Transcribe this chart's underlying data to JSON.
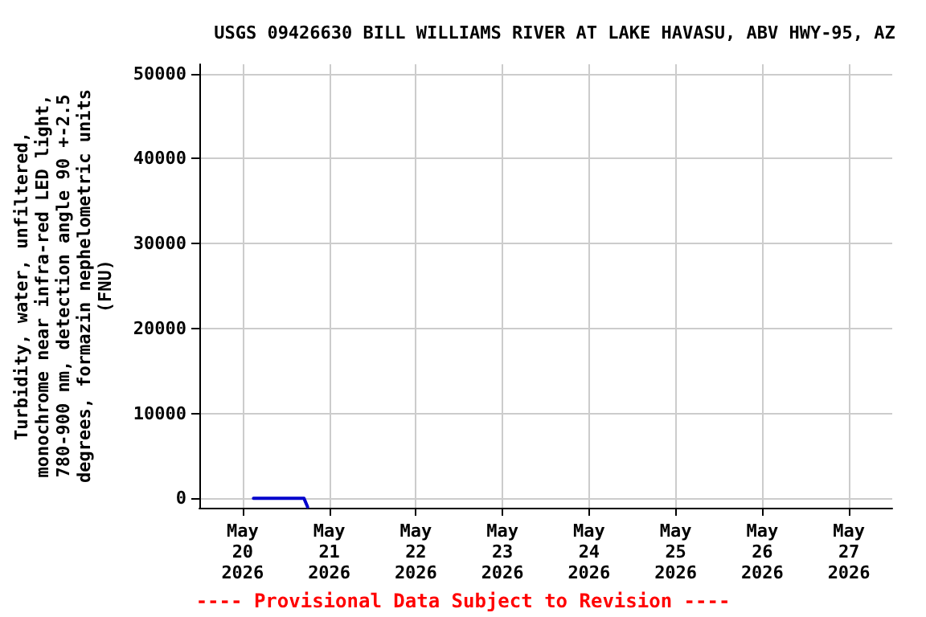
{
  "chart_data": {
    "type": "line",
    "title": "USGS 09426630 BILL WILLIAMS RIVER AT LAKE HAVASU, ABV HWY-95, AZ",
    "ylabel": "Turbidity, water, unfiltered,\nmonochrome near infra-red LED light,\n780-900 nm, detection angle 90 +-2.5\ndegrees, formazin nephelometric units\n(FNU)",
    "x": [
      "2026-05-20T03:00",
      "2026-05-20T10:00",
      "2026-05-20T17:00",
      "2026-05-20T18:00"
    ],
    "series": [
      {
        "color": "#0000cc",
        "values": [
          0,
          0,
          0,
          -1000
        ]
      }
    ],
    "xlim": [
      "2026-05-19T12:00",
      "2026-05-27T12:00"
    ],
    "xticks": [
      {
        "value": "2026-05-20",
        "label": "May\n20\n2026"
      },
      {
        "value": "2026-05-21",
        "label": "May\n21\n2026"
      },
      {
        "value": "2026-05-22",
        "label": "May\n22\n2026"
      },
      {
        "value": "2026-05-23",
        "label": "May\n23\n2026"
      },
      {
        "value": "2026-05-24",
        "label": "May\n24\n2026"
      },
      {
        "value": "2026-05-25",
        "label": "May\n25\n2026"
      },
      {
        "value": "2026-05-26",
        "label": "May\n26\n2026"
      },
      {
        "value": "2026-05-27",
        "label": "May\n27\n2026"
      }
    ],
    "ylim": [
      -1100,
      51100
    ],
    "yticks": [
      0,
      10000,
      20000,
      30000,
      40000,
      50000
    ],
    "grid": true,
    "marker": "none",
    "line_style": "solid",
    "annotations": [
      "---- Provisional Data Subject to Revision ----"
    ]
  }
}
